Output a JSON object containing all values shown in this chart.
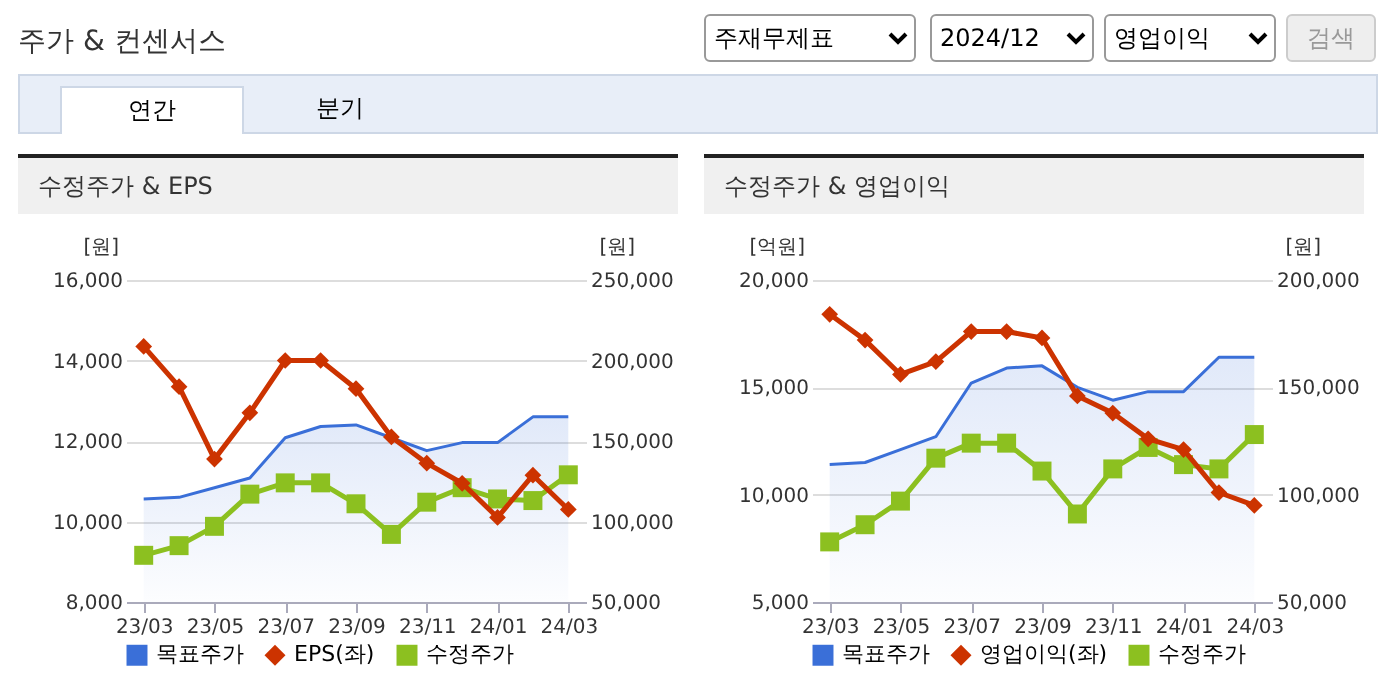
{
  "chart_data": [
    {
      "type": "other",
      "title": "주가 & 컨센서스",
      "annotations": [
        "주재무제표",
        "2024/12",
        "영업이익",
        "검색",
        "연간",
        "분기"
      ]
    },
    {
      "type": "line",
      "title": "수정주가 & EPS",
      "categories": [
        "23/03",
        null,
        "23/05",
        null,
        "23/07",
        null,
        "23/09",
        null,
        "23/11",
        null,
        "24/01",
        null,
        "24/03"
      ],
      "ylabel": "[원]",
      "y2label": "[원]",
      "ylim": [
        8000,
        16000
      ],
      "yticks": [
        {
          "value": 8000,
          "label": "8,000"
        },
        {
          "value": 10000,
          "label": "10,000"
        },
        {
          "value": 12000,
          "label": "12,000"
        },
        {
          "value": 14000,
          "label": "14,000"
        },
        {
          "value": 16000,
          "label": "16,000"
        }
      ],
      "y2lim": [
        50000,
        250000
      ],
      "y2ticks": [
        {
          "value": 50000,
          "label": "50,000"
        },
        {
          "value": 100000,
          "label": "100,000"
        },
        {
          "value": 150000,
          "label": "150,000"
        },
        {
          "value": 200000,
          "label": "200,000"
        },
        {
          "value": 250000,
          "label": "250,000"
        }
      ],
      "grid": "y",
      "legend": "bottom",
      "series": [
        {
          "name": "목표주가",
          "type": "area",
          "axis": "y2",
          "color": "#3a6fd8",
          "marker": "none",
          "values": [
            114000,
            115000,
            121000,
            127000,
            152000,
            159000,
            160000,
            152000,
            144000,
            149000,
            149000,
            165000,
            165000
          ]
        },
        {
          "name": "EPS(좌)",
          "type": "line",
          "color": "#cc3300",
          "marker": "diamond",
          "values": [
            14350,
            13350,
            11550,
            12700,
            14000,
            14000,
            13300,
            12100,
            11450,
            10950,
            10100,
            11150,
            10300
          ]
        },
        {
          "name": "수정주가",
          "type": "line",
          "axis": "y2",
          "color": "#8cc020",
          "marker": "square",
          "values": [
            79000,
            85000,
            97000,
            117000,
            124000,
            124000,
            111000,
            92000,
            112000,
            121000,
            114000,
            113000,
            129000
          ]
        }
      ]
    },
    {
      "type": "line",
      "title": "수정주가 & 영업이익",
      "categories": [
        "23/03",
        null,
        "23/05",
        null,
        "23/07",
        null,
        "23/09",
        null,
        "23/11",
        null,
        "24/01",
        null,
        "24/03"
      ],
      "ylabel": "[억원]",
      "y2label": "[원]",
      "ylim": [
        5000,
        20000
      ],
      "yticks": [
        {
          "value": 5000,
          "label": "5,000"
        },
        {
          "value": 10000,
          "label": "10,000"
        },
        {
          "value": 15000,
          "label": "15,000"
        },
        {
          "value": 20000,
          "label": "20,000"
        }
      ],
      "y2lim": [
        50000,
        200000
      ],
      "y2ticks": [
        {
          "value": 50000,
          "label": "50,000"
        },
        {
          "value": 100000,
          "label": "100,000"
        },
        {
          "value": 150000,
          "label": "150,000"
        },
        {
          "value": 200000,
          "label": "200,000"
        }
      ],
      "grid": "y",
      "legend": "bottom",
      "series": [
        {
          "name": "목표주가",
          "type": "area",
          "axis": "y2",
          "color": "#3a6fd8",
          "marker": "none",
          "values": [
            114000,
            115000,
            121000,
            127000,
            152000,
            159000,
            160000,
            150000,
            144000,
            148000,
            148000,
            164000,
            164000
          ]
        },
        {
          "name": "영업이익(좌)",
          "type": "line",
          "color": "#cc3300",
          "marker": "diamond",
          "values": [
            18400,
            17200,
            15600,
            16200,
            17600,
            17600,
            17300,
            14600,
            13800,
            12600,
            12100,
            10100,
            9500
          ]
        },
        {
          "name": "수정주가",
          "type": "line",
          "axis": "y2",
          "color": "#8cc020",
          "marker": "square",
          "values": [
            78000,
            86000,
            97000,
            117000,
            124000,
            124000,
            111000,
            91000,
            112000,
            122000,
            114000,
            112000,
            128000
          ]
        }
      ]
    }
  ]
}
